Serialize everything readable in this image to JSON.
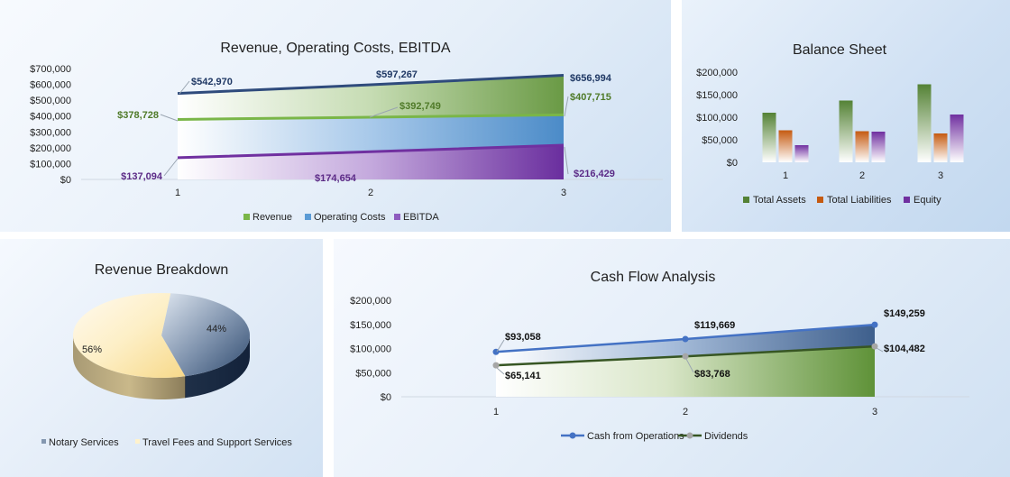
{
  "chart_data": [
    {
      "type": "area",
      "title": "Revenue, Operating Costs, EBITDA",
      "categories": [
        "1",
        "2",
        "3"
      ],
      "series": [
        {
          "name": "Revenue",
          "values": [
            542970,
            597267,
            656994
          ],
          "labels": [
            "$542,970",
            "$597,267",
            "$656,994"
          ],
          "color": "#2f4b7c"
        },
        {
          "name": "Operating Costs",
          "values": [
            378728,
            392749,
            407715
          ],
          "labels": [
            "$378,728",
            "$392,749",
            "$407,715"
          ],
          "color": "#7ab648"
        },
        {
          "name": "EBITDA",
          "values": [
            137094,
            174654,
            216429
          ],
          "labels": [
            "$137,094",
            "$174,654",
            "$216,429"
          ],
          "color": "#7030a0"
        }
      ],
      "ylim": [
        0,
        700000
      ],
      "yticks": [
        0,
        100000,
        200000,
        300000,
        400000,
        500000,
        600000,
        700000
      ],
      "ytick_labels": [
        "$0",
        "$100,000",
        "$200,000",
        "$300,000",
        "$400,000",
        "$500,000",
        "$600,000",
        "$700,000"
      ],
      "legend": [
        "Revenue",
        "Operating Costs",
        "EBITDA"
      ],
      "legend_position": "bottom",
      "grid": false
    },
    {
      "type": "bar",
      "title": "Balance Sheet",
      "categories": [
        "1",
        "2",
        "3"
      ],
      "series": [
        {
          "name": "Total Assets",
          "values": [
            110000,
            137000,
            173000
          ],
          "color": "#548235"
        },
        {
          "name": "Total Liabilities",
          "values": [
            71000,
            69000,
            64000
          ],
          "color": "#c55a11"
        },
        {
          "name": "Equity",
          "values": [
            38000,
            68000,
            106000
          ],
          "color": "#7030a0"
        }
      ],
      "ylim": [
        0,
        200000
      ],
      "yticks": [
        0,
        50000,
        100000,
        150000,
        200000
      ],
      "ytick_labels": [
        "$0",
        "$50,000",
        "$100,000",
        "$150,000",
        "$200,000"
      ],
      "legend_position": "bottom",
      "grid": false
    },
    {
      "type": "pie",
      "title": "Revenue Breakdown",
      "slices": [
        {
          "name": "Notary Services",
          "value": 44,
          "label": "44%",
          "color": "#44546a"
        },
        {
          "name": "Travel Fees and Support Services",
          "value": 56,
          "label": "56%",
          "color": "#ffe699"
        }
      ],
      "legend_position": "bottom"
    },
    {
      "type": "line",
      "title": "Cash Flow Analysis",
      "categories": [
        "1",
        "2",
        "3"
      ],
      "series": [
        {
          "name": "Cash from Operations",
          "values": [
            93058,
            119669,
            149259
          ],
          "labels": [
            "$93,058",
            "$119,669",
            "$149,259"
          ],
          "color": "#4472c4"
        },
        {
          "name": "Dividends",
          "values": [
            65141,
            83768,
            104482
          ],
          "labels": [
            "$65,141",
            "$83,768",
            "$104,482"
          ],
          "color": "#375623"
        }
      ],
      "ylim": [
        0,
        200000
      ],
      "yticks": [
        0,
        50000,
        100000,
        150000,
        200000
      ],
      "ytick_labels": [
        "$0",
        "$50,000",
        "$100,000",
        "$150,000",
        "$200,000"
      ],
      "legend_position": "bottom",
      "grid": false
    }
  ]
}
